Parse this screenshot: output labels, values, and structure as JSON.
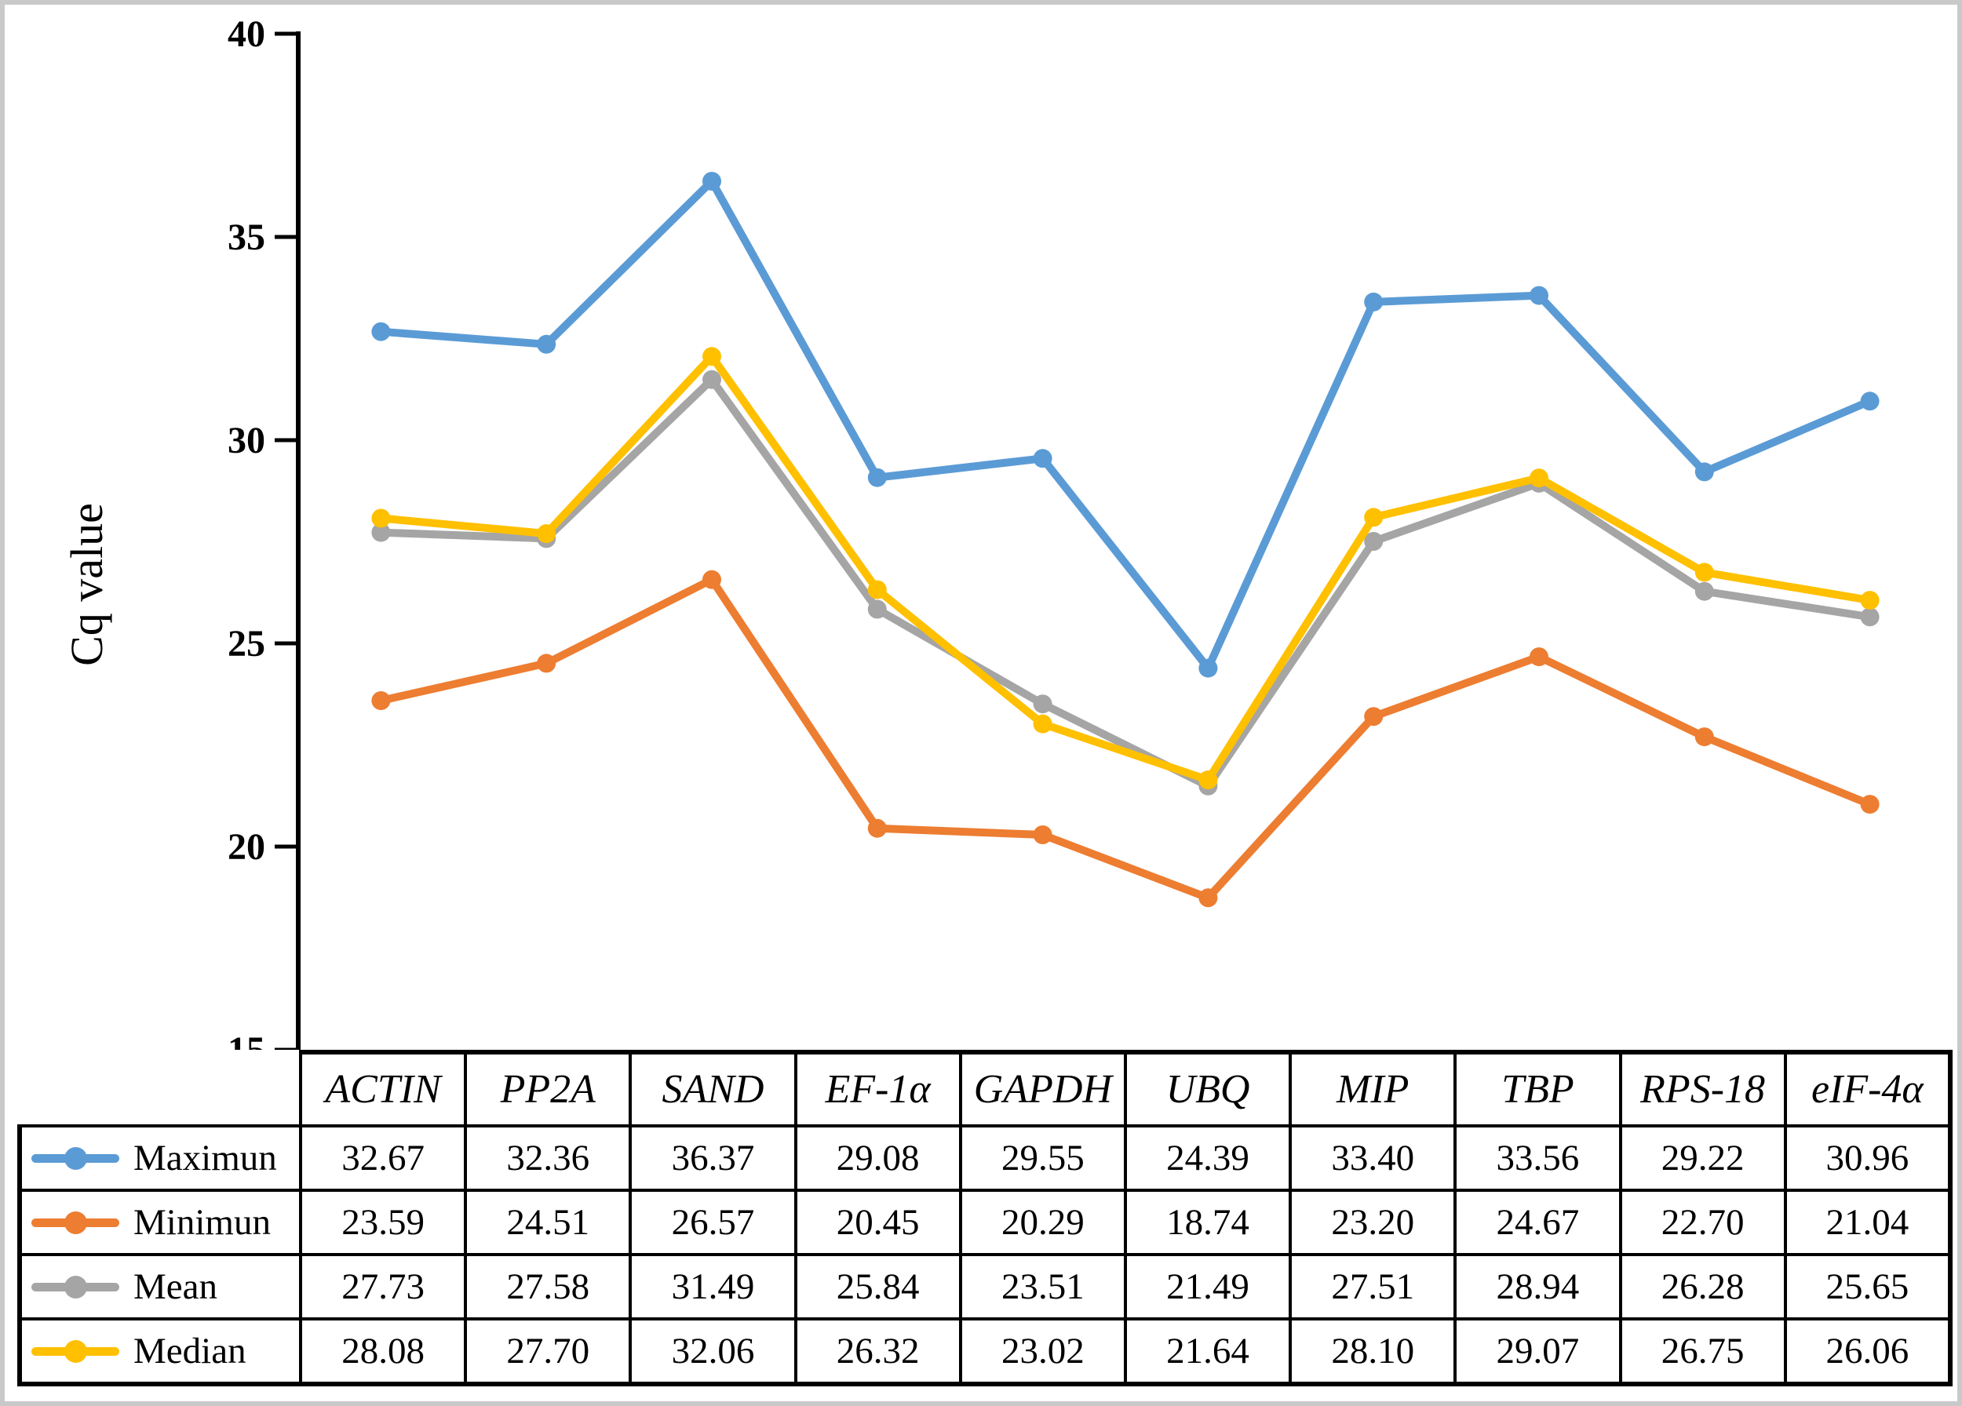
{
  "chart_data": {
    "type": "line",
    "title": "",
    "xlabel": "",
    "ylabel": "Cq value",
    "ylim": [
      15,
      40
    ],
    "yticks": [
      40,
      35,
      30,
      25,
      20,
      15
    ],
    "grid": false,
    "marker": "circle",
    "legend_position": "table-rows-left",
    "categories": [
      "ACTIN",
      "PP2A",
      "SAND",
      "EF-1α",
      "GAPDH",
      "UBQ",
      "MIP",
      "TBP",
      "RPS-18",
      "eIF-4α"
    ],
    "series": [
      {
        "name": "Maximun",
        "color": "#5B9BD5",
        "values": [
          32.67,
          32.36,
          36.37,
          29.08,
          29.55,
          24.39,
          33.4,
          33.56,
          29.22,
          30.96
        ]
      },
      {
        "name": "Minimun",
        "color": "#ED7D31",
        "values": [
          23.59,
          24.51,
          26.57,
          20.45,
          20.29,
          18.74,
          23.2,
          24.67,
          22.7,
          21.04
        ]
      },
      {
        "name": "Mean",
        "color": "#A5A5A5",
        "values": [
          27.73,
          27.58,
          31.49,
          25.84,
          23.51,
          21.49,
          27.51,
          28.94,
          26.28,
          25.65
        ]
      },
      {
        "name": "Median",
        "color": "#FFC000",
        "values": [
          28.08,
          27.7,
          32.06,
          26.32,
          23.02,
          21.64,
          28.1,
          29.07,
          26.75,
          26.06
        ]
      }
    ],
    "value_decimals": 2
  },
  "frame_color": "#c9c9c9",
  "axis_color": "#000000"
}
